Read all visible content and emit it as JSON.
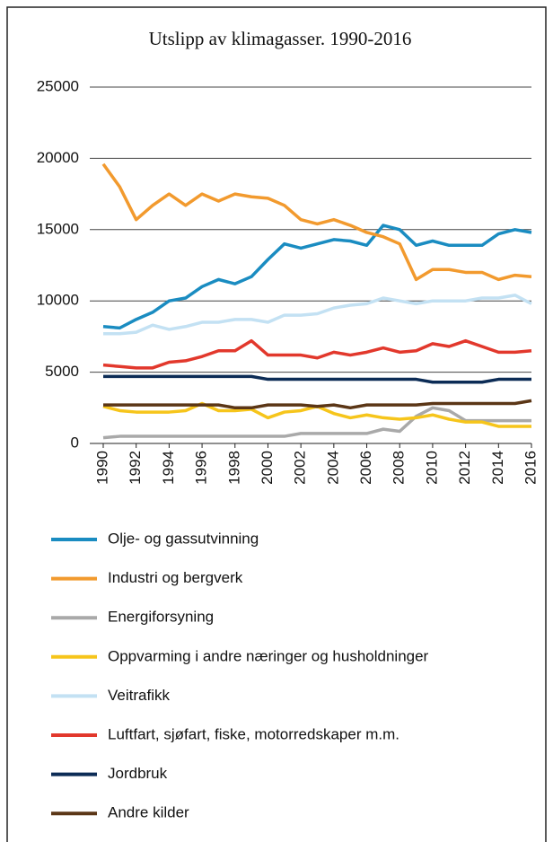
{
  "chart_data": {
    "type": "line",
    "title": "Utslipp av klimagasser. 1990-2016",
    "x": [
      1990,
      1991,
      1992,
      1993,
      1994,
      1995,
      1996,
      1997,
      1998,
      1999,
      2000,
      2001,
      2002,
      2003,
      2004,
      2005,
      2006,
      2007,
      2008,
      2009,
      2010,
      2011,
      2012,
      2013,
      2014,
      2015,
      2016
    ],
    "xlim": [
      1990,
      2016
    ],
    "xticks": [
      1990,
      1992,
      1994,
      1996,
      1998,
      2000,
      2002,
      2004,
      2006,
      2008,
      2010,
      2012,
      2014,
      2016
    ],
    "ylim": [
      0,
      25000
    ],
    "yticks": [
      0,
      5000,
      10000,
      15000,
      20000,
      25000
    ],
    "grid": true,
    "series": [
      {
        "name": "Olje- og gassutvinning",
        "color": "#1a8cc1",
        "values": [
          8200,
          8100,
          8700,
          9200,
          10000,
          10200,
          11000,
          11500,
          11200,
          11700,
          12900,
          14000,
          13700,
          14000,
          14300,
          14200,
          13900,
          15300,
          15000,
          13900,
          14200,
          13900,
          13900,
          13900,
          14700,
          15000,
          14800
        ]
      },
      {
        "name": "Industri og bergverk",
        "color": "#f29a2e",
        "values": [
          19600,
          18000,
          15700,
          16700,
          17500,
          16700,
          17500,
          17000,
          17500,
          17300,
          17200,
          16700,
          15700,
          15400,
          15700,
          15300,
          14800,
          14500,
          14000,
          11500,
          12200,
          12200,
          12000,
          12000,
          11500,
          11800,
          11700
        ]
      },
      {
        "name": "Energiforsyning",
        "color": "#a9a9a9",
        "values": [
          400,
          500,
          500,
          500,
          500,
          500,
          500,
          500,
          500,
          500,
          500,
          500,
          700,
          700,
          700,
          700,
          700,
          1000,
          850,
          1900,
          2500,
          2300,
          1600,
          1600,
          1600,
          1600,
          1600
        ]
      },
      {
        "name": "Oppvarming i andre næringer og husholdninger",
        "color": "#f6c51b",
        "values": [
          2600,
          2300,
          2200,
          2200,
          2200,
          2300,
          2800,
          2300,
          2300,
          2400,
          1800,
          2200,
          2300,
          2600,
          2100,
          1800,
          2000,
          1800,
          1700,
          1800,
          2000,
          1700,
          1500,
          1500,
          1200,
          1200,
          1200
        ]
      },
      {
        "name": "Veitrafikk",
        "color": "#c3e1f3",
        "values": [
          7700,
          7700,
          7800,
          8300,
          8000,
          8200,
          8500,
          8500,
          8700,
          8700,
          8500,
          9000,
          9000,
          9100,
          9500,
          9700,
          9800,
          10200,
          10000,
          9800,
          10000,
          10000,
          10000,
          10200,
          10200,
          10400,
          9800
        ]
      },
      {
        "name": "Luftfart, sjøfart, fiske, motorredskaper m.m.",
        "color": "#e2382c",
        "values": [
          5500,
          5400,
          5300,
          5300,
          5700,
          5800,
          6100,
          6500,
          6500,
          7200,
          6200,
          6200,
          6200,
          6000,
          6400,
          6200,
          6400,
          6700,
          6400,
          6500,
          7000,
          6800,
          7200,
          6800,
          6400,
          6400,
          6500
        ]
      },
      {
        "name": "Jordbruk",
        "color": "#0c2c56",
        "values": [
          4700,
          4700,
          4700,
          4700,
          4700,
          4700,
          4700,
          4700,
          4700,
          4700,
          4500,
          4500,
          4500,
          4500,
          4500,
          4500,
          4500,
          4500,
          4500,
          4500,
          4300,
          4300,
          4300,
          4300,
          4500,
          4500,
          4500
        ]
      },
      {
        "name": "Andre kilder",
        "color": "#5b3616",
        "values": [
          2700,
          2700,
          2700,
          2700,
          2700,
          2700,
          2700,
          2700,
          2500,
          2500,
          2700,
          2700,
          2700,
          2600,
          2700,
          2500,
          2700,
          2700,
          2700,
          2700,
          2800,
          2800,
          2800,
          2800,
          2800,
          2800,
          3000
        ]
      }
    ]
  }
}
